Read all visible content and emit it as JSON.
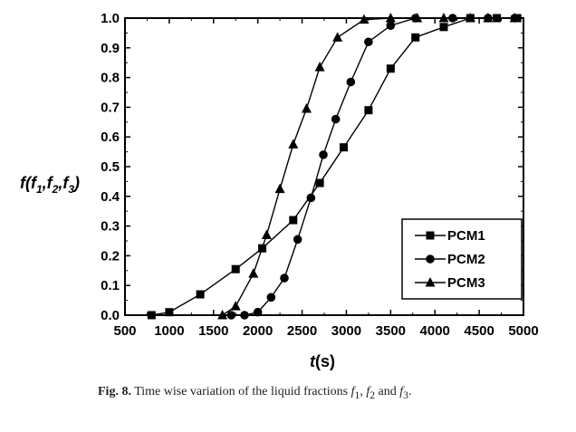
{
  "chart_data": {
    "type": "line",
    "xlabel_var": "t",
    "xlabel_unit": "(s)",
    "ylabel": "f(f1,f2,f3)",
    "xlim": [
      500,
      5000
    ],
    "ylim": [
      0.0,
      1.0
    ],
    "xticks": [
      "500",
      "1000",
      "1500",
      "2000",
      "2500",
      "3000",
      "3500",
      "4000",
      "4500",
      "5000"
    ],
    "yticks": [
      "0.0",
      "0.1",
      "0.2",
      "0.3",
      "0.4",
      "0.5",
      "0.6",
      "0.7",
      "0.8",
      "0.9",
      "1.0"
    ],
    "series": [
      {
        "name": "PCM1",
        "marker": "square",
        "x": [
          800,
          1000,
          1350,
          1750,
          2050,
          2400,
          2700,
          2970,
          3250,
          3500,
          3780,
          4100,
          4400,
          4700,
          4930
        ],
        "y": [
          0.0,
          0.01,
          0.07,
          0.155,
          0.225,
          0.32,
          0.445,
          0.565,
          0.69,
          0.83,
          0.935,
          0.97,
          1.0,
          1.0,
          1.0
        ]
      },
      {
        "name": "PCM2",
        "marker": "circle",
        "x": [
          1700,
          1850,
          2000,
          2150,
          2300,
          2450,
          2600,
          2740,
          2880,
          3050,
          3250,
          3500,
          3780,
          4200,
          4600,
          4900
        ],
        "y": [
          0.0,
          0.0,
          0.01,
          0.06,
          0.125,
          0.255,
          0.395,
          0.54,
          0.66,
          0.785,
          0.92,
          0.975,
          1.0,
          1.0,
          1.0,
          1.0
        ]
      },
      {
        "name": "PCM3",
        "marker": "triangle",
        "x": [
          1600,
          1750,
          1950,
          2100,
          2250,
          2400,
          2550,
          2700,
          2900,
          3200,
          3500,
          3800,
          4100,
          4400,
          4600,
          4900
        ],
        "y": [
          0.0,
          0.03,
          0.14,
          0.27,
          0.425,
          0.575,
          0.695,
          0.835,
          0.935,
          0.995,
          1.0,
          1.0,
          1.0,
          1.0,
          1.0,
          1.0
        ]
      }
    ]
  },
  "caption": {
    "label": "Fig. 8.",
    "text_prefix": "Time wise variation of the liquid fractions ",
    "f1": "f",
    "f1_sub": "1",
    "sep1": ", ",
    "f2": "f",
    "f2_sub": "2",
    "sep2": " and ",
    "f3": "f",
    "f3_sub": "3",
    "end": "."
  }
}
